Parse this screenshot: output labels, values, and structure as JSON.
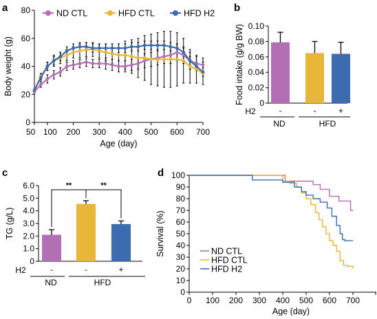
{
  "colors": {
    "nd": "#b36fb4",
    "hfd": "#e8b638",
    "h2": "#3d6bb0",
    "axis": "#000000",
    "errbar": "#000000"
  },
  "chart_data": [
    {
      "id": "a",
      "panel": "a",
      "type": "line",
      "xlabel": "Age (day)",
      "ylabel": "Body weight (g)",
      "xlim": [
        50,
        700
      ],
      "ylim": [
        0,
        80
      ],
      "xticks": [
        50,
        100,
        200,
        300,
        400,
        500,
        600,
        700
      ],
      "yticks": [
        0,
        20,
        40,
        60,
        80
      ],
      "legend_position": "top",
      "series": [
        {
          "name": "ND CTL",
          "key": "nd",
          "x": [
            50,
            75,
            100,
            125,
            150,
            175,
            200,
            225,
            250,
            275,
            300,
            325,
            350,
            375,
            400,
            425,
            450,
            475,
            500,
            525,
            550,
            575,
            600,
            625,
            650,
            675,
            700
          ],
          "y": [
            22,
            27,
            31,
            34,
            36,
            40,
            41,
            42,
            43,
            42,
            42,
            42,
            41,
            40,
            40,
            41,
            42,
            44,
            45,
            46,
            47,
            48,
            50,
            48,
            44,
            42,
            41
          ],
          "err": [
            1,
            2,
            3,
            3,
            3,
            3,
            3,
            3,
            3,
            3,
            3,
            4,
            4,
            4,
            4,
            4,
            4,
            5,
            5,
            5,
            5,
            6,
            6,
            6,
            6,
            5,
            5
          ]
        },
        {
          "name": "HFD CTL",
          "key": "hfd",
          "x": [
            50,
            75,
            100,
            125,
            150,
            175,
            200,
            225,
            250,
            275,
            300,
            325,
            350,
            375,
            400,
            425,
            450,
            475,
            500,
            525,
            550,
            575,
            600,
            625,
            650,
            675,
            700
          ],
          "y": [
            23,
            33,
            40,
            44,
            46,
            48,
            50,
            51,
            52,
            52,
            51,
            50,
            49,
            48,
            48,
            47,
            46,
            46,
            45,
            45,
            45,
            45,
            45,
            44,
            40,
            38,
            35
          ],
          "err": [
            1,
            2,
            3,
            4,
            4,
            4,
            4,
            5,
            5,
            5,
            5,
            6,
            7,
            8,
            10,
            12,
            14,
            16,
            18,
            19,
            20,
            20,
            19,
            16,
            12,
            10,
            8
          ]
        },
        {
          "name": "HFD H2",
          "key": "h2",
          "x": [
            50,
            75,
            100,
            125,
            150,
            175,
            200,
            225,
            250,
            275,
            300,
            325,
            350,
            375,
            400,
            425,
            450,
            475,
            500,
            525,
            550,
            575,
            600,
            625,
            650,
            675,
            700
          ],
          "y": [
            23,
            32,
            40,
            44,
            47,
            51,
            53,
            54,
            54,
            53,
            53,
            53,
            53,
            53,
            53,
            54,
            54,
            55,
            55,
            55,
            55,
            54,
            53,
            50,
            44,
            40,
            36
          ],
          "err": [
            1,
            2,
            3,
            3,
            3,
            3,
            3,
            3,
            3,
            3,
            3,
            3,
            3,
            3,
            3,
            3,
            3,
            3,
            3,
            3,
            3,
            3,
            3,
            3,
            3,
            3,
            3
          ]
        }
      ]
    },
    {
      "id": "b",
      "panel": "b",
      "type": "bar",
      "ylabel": "Food intake (g/g BW)",
      "ylim": [
        0,
        0.1
      ],
      "yticks": [
        "0",
        "0.02",
        "0.04",
        "0.06",
        "0.08",
        "0.10"
      ],
      "categories": [
        "ND",
        "HFD",
        "HFD"
      ],
      "h2_row_label": "H2",
      "h2": [
        "-",
        "-",
        "+"
      ],
      "group_labels": [
        "ND",
        "HFD"
      ],
      "values": [
        0.079,
        0.065,
        0.064
      ],
      "errors": [
        0.013,
        0.015,
        0.015
      ],
      "bar_keys": [
        "nd",
        "hfd",
        "h2"
      ]
    },
    {
      "id": "c",
      "panel": "c",
      "type": "bar",
      "ylabel": "TG (g/L)",
      "ylim": [
        0,
        6
      ],
      "yticks": [
        "0",
        "1.0",
        "2.0",
        "3.0",
        "4.0",
        "5.0",
        "6.0"
      ],
      "categories": [
        "ND",
        "HFD",
        "HFD"
      ],
      "h2_row_label": "H2",
      "h2": [
        "-",
        "-",
        "+"
      ],
      "group_labels": [
        "ND",
        "HFD"
      ],
      "values": [
        2.1,
        4.55,
        2.95
      ],
      "errors": [
        0.4,
        0.25,
        0.25
      ],
      "bar_keys": [
        "nd",
        "hfd",
        "h2"
      ],
      "significance": [
        {
          "from": 0,
          "to": 1,
          "label": "**"
        },
        {
          "from": 1,
          "to": 2,
          "label": "**"
        }
      ]
    },
    {
      "id": "d",
      "panel": "d",
      "type": "line",
      "step": true,
      "xlabel": "Age (day)",
      "ylabel": "Survival (%)",
      "xlim": [
        0,
        800
      ],
      "ylim": [
        0,
        100
      ],
      "xticks": [
        0,
        100,
        200,
        300,
        400,
        500,
        600,
        700
      ],
      "yticks": [
        0,
        10,
        20,
        30,
        40,
        50,
        60,
        70,
        80,
        90,
        100
      ],
      "legend_position": "bottom-left",
      "series": [
        {
          "name": "ND CTL",
          "key": "nd",
          "x": [
            0,
            410,
            530,
            560,
            600,
            640,
            690,
            700
          ],
          "y": [
            100,
            95,
            92,
            88,
            82,
            78,
            70,
            70
          ]
        },
        {
          "name": "HFD CTL",
          "key": "hfd",
          "x": [
            0,
            400,
            430,
            460,
            480,
            500,
            520,
            540,
            555,
            570,
            585,
            600,
            615,
            630,
            645,
            660,
            680,
            700
          ],
          "y": [
            100,
            95,
            93,
            90,
            85,
            80,
            75,
            68,
            62,
            56,
            50,
            44,
            40,
            35,
            27,
            23,
            22,
            20
          ]
        },
        {
          "name": "HFD H2",
          "key": "h2",
          "x": [
            0,
            270,
            400,
            450,
            480,
            500,
            530,
            560,
            590,
            610,
            630,
            645,
            655,
            665,
            700
          ],
          "y": [
            100,
            96,
            94,
            90,
            86,
            83,
            80,
            77,
            72,
            65,
            57,
            50,
            45,
            44,
            44
          ]
        }
      ]
    }
  ]
}
